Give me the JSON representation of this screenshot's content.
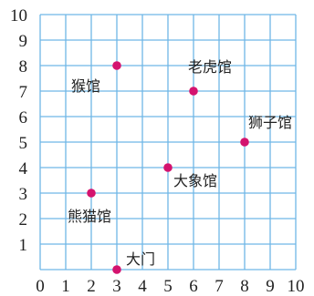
{
  "chart_data": {
    "type": "scatter",
    "xlim": [
      0,
      10
    ],
    "ylim": [
      0,
      10
    ],
    "grid": true,
    "x_ticks": [
      "0",
      "1",
      "2",
      "3",
      "4",
      "5",
      "6",
      "7",
      "8",
      "9",
      "10"
    ],
    "y_ticks": [
      "1",
      "2",
      "3",
      "4",
      "5",
      "6",
      "7",
      "8",
      "9",
      "10"
    ],
    "point_color": "#d4136e",
    "grid_color": "#6fb7e6",
    "points": [
      {
        "label": "猴馆",
        "x": 3,
        "y": 8
      },
      {
        "label": "老虎馆",
        "x": 6,
        "y": 7
      },
      {
        "label": "狮子馆",
        "x": 8,
        "y": 5
      },
      {
        "label": "大象馆",
        "x": 5,
        "y": 4
      },
      {
        "label": "熊猫馆",
        "x": 2,
        "y": 3
      },
      {
        "label": "大门",
        "x": 3,
        "y": 0
      }
    ]
  }
}
